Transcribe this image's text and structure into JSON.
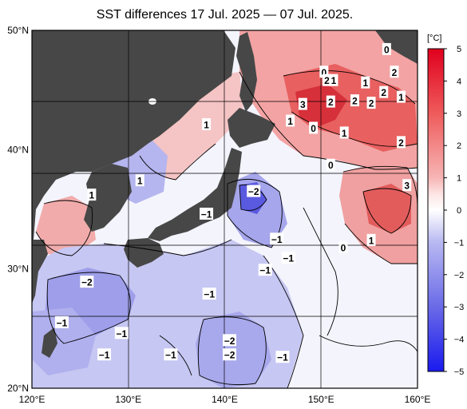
{
  "title": "SST differences 17 Jul. 2025 — 07 Jul. 2025.",
  "colorbar": {
    "unit": "[°C]",
    "ticks": [
      "5",
      "4",
      "3",
      "2",
      "1",
      "0",
      "−1",
      "−2",
      "−3",
      "−4",
      "−5"
    ]
  },
  "axes": {
    "x_ticks": [
      "120°E",
      "130°E",
      "140°E",
      "150°E",
      "160°E"
    ],
    "y_ticks": [
      "50°N",
      "40°N",
      "30°N",
      "20°N"
    ]
  },
  "contour_labels": [
    {
      "text": "0",
      "lon": 156.8,
      "lat": 48.4
    },
    {
      "text": "2",
      "lon": 157.6,
      "lat": 46.5
    },
    {
      "text": "0",
      "lon": 150.3,
      "lat": 46.5
    },
    {
      "text": "2",
      "lon": 150.6,
      "lat": 45.8
    },
    {
      "text": "1",
      "lon": 151.3,
      "lat": 45.8
    },
    {
      "text": "1",
      "lon": 154.6,
      "lat": 45.6
    },
    {
      "text": "2",
      "lon": 156.5,
      "lat": 44.8
    },
    {
      "text": "1",
      "lon": 158.3,
      "lat": 44.4
    },
    {
      "text": "3",
      "lon": 148.1,
      "lat": 43.8
    },
    {
      "text": "2",
      "lon": 151.0,
      "lat": 44.0
    },
    {
      "text": "2",
      "lon": 153.5,
      "lat": 44.1
    },
    {
      "text": "2",
      "lon": 155.2,
      "lat": 43.9
    },
    {
      "text": "1",
      "lon": 146.8,
      "lat": 42.4
    },
    {
      "text": "0",
      "lon": 149.2,
      "lat": 41.8
    },
    {
      "text": "1",
      "lon": 152.4,
      "lat": 41.4
    },
    {
      "text": "2",
      "lon": 158.3,
      "lat": 40.6
    },
    {
      "text": "1",
      "lon": 138.1,
      "lat": 42.1
    },
    {
      "text": "0",
      "lon": 151.0,
      "lat": 38.7
    },
    {
      "text": "−2",
      "lon": 143.0,
      "lat": 36.5
    },
    {
      "text": "1",
      "lon": 126.2,
      "lat": 36.2
    },
    {
      "text": "3",
      "lon": 158.9,
      "lat": 37.0
    },
    {
      "text": "1",
      "lon": 131.2,
      "lat": 37.4
    },
    {
      "text": "−1",
      "lon": 138.1,
      "lat": 34.6
    },
    {
      "text": "−1",
      "lon": 145.4,
      "lat": 32.5
    },
    {
      "text": "1",
      "lon": 155.2,
      "lat": 32.4
    },
    {
      "text": "0",
      "lon": 152.3,
      "lat": 31.8
    },
    {
      "text": "−1",
      "lon": 146.6,
      "lat": 30.9
    },
    {
      "text": "−1",
      "lon": 144.2,
      "lat": 29.9
    },
    {
      "text": "−2",
      "lon": 125.7,
      "lat": 28.9
    },
    {
      "text": "−1",
      "lon": 138.4,
      "lat": 27.9
    },
    {
      "text": "−1",
      "lon": 123.1,
      "lat": 25.5
    },
    {
      "text": "−1",
      "lon": 129.3,
      "lat": 24.6
    },
    {
      "text": "−2",
      "lon": 140.5,
      "lat": 24.0
    },
    {
      "text": "−1",
      "lon": 127.5,
      "lat": 22.8
    },
    {
      "text": "−2",
      "lon": 140.5,
      "lat": 22.8
    },
    {
      "text": "−1",
      "lon": 134.4,
      "lat": 22.8
    },
    {
      "text": "−1",
      "lon": 146.0,
      "lat": 22.6
    }
  ],
  "colors": {
    "land": "#474747",
    "frame": "#000000",
    "grid": "#000000",
    "warm_max": "#e0001e",
    "cool_max": "#1a1aee",
    "neutral": "#ffffff"
  }
}
